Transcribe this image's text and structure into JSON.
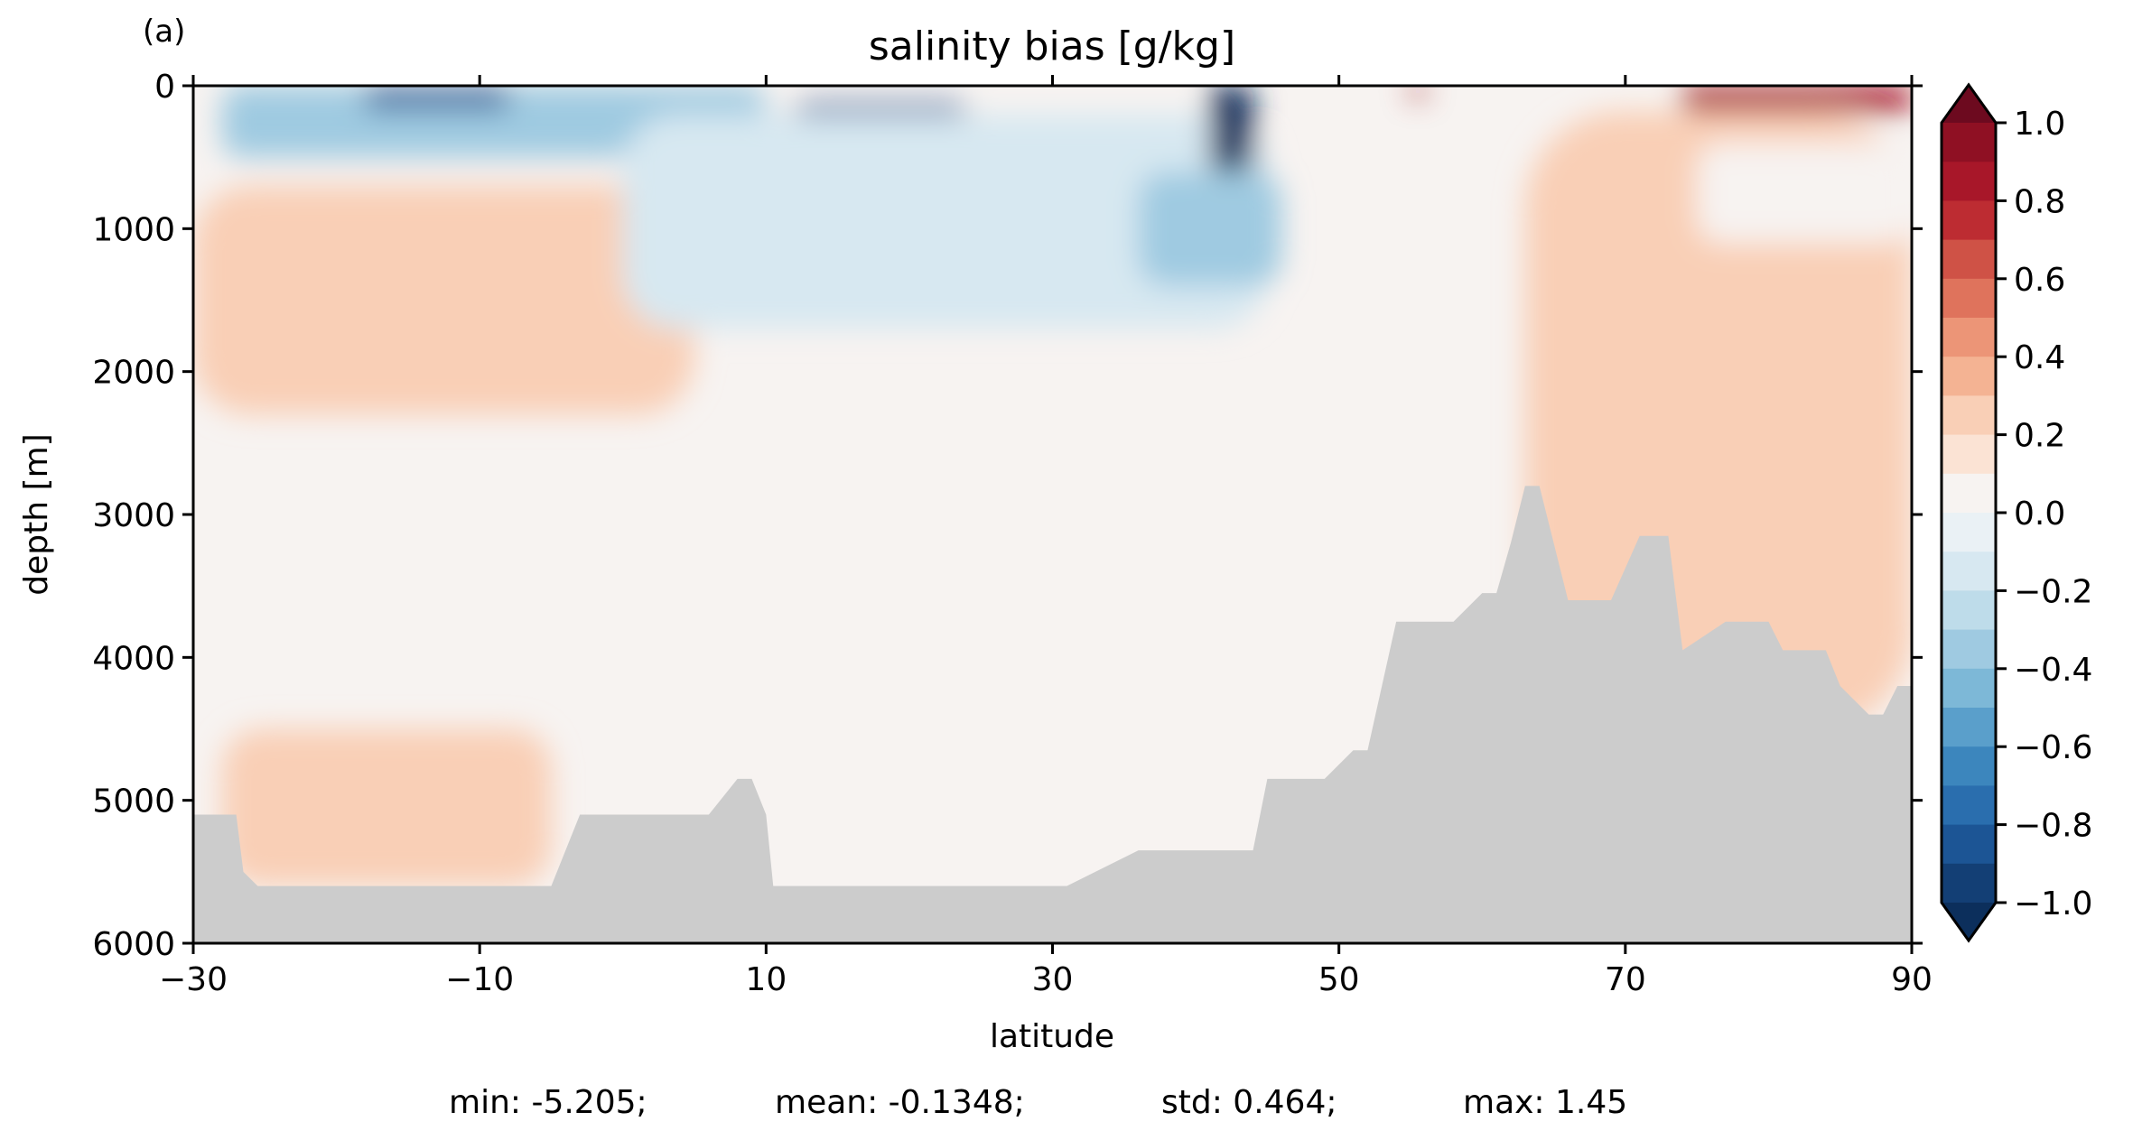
{
  "chart_data": {
    "type": "heatmap",
    "panel_label": "(a)",
    "title": "salinity bias [g/kg]",
    "xlabel": "latitude",
    "ylabel": "depth [m]",
    "xlim": [
      -30,
      90
    ],
    "ylim": [
      6000,
      0
    ],
    "x_ticks": [
      -30,
      -10,
      10,
      30,
      50,
      70,
      90
    ],
    "x_tick_labels": [
      "−30",
      "−10",
      "10",
      "30",
      "50",
      "70",
      "90"
    ],
    "y_ticks": [
      0,
      1000,
      2000,
      3000,
      4000,
      5000,
      6000
    ],
    "y_tick_labels": [
      "0",
      "1000",
      "2000",
      "3000",
      "4000",
      "5000",
      "6000"
    ],
    "colorbar": {
      "range": [
        -1.0,
        1.0
      ],
      "extend": "both",
      "tick_values": [
        1.0,
        0.8,
        0.6,
        0.4,
        0.2,
        0.0,
        -0.2,
        -0.4,
        -0.6,
        -0.8,
        -1.0
      ],
      "tick_labels": [
        "1.0",
        "0.8",
        "0.6",
        "0.4",
        "0.2",
        "0.0",
        "−0.2",
        "−0.4",
        "−0.6",
        "−0.8",
        "−1.0"
      ],
      "levels_top_to_bottom": [
        "#8f1023",
        "#a81729",
        "#bd2c32",
        "#cf5246",
        "#df735c",
        "#ec9577",
        "#f4b393",
        "#f9cfb6",
        "#fbe3d4",
        "#f7f3f1",
        "#eaf1f5",
        "#d7e8f1",
        "#bedcea",
        "#9fcae1",
        "#7db8d7",
        "#5a9fcb",
        "#3c86bd",
        "#2a6eae",
        "#1c5595",
        "#133f75"
      ],
      "over_color": "#6d0a1f",
      "under_color": "#0c2f5c"
    },
    "field": {
      "background_value": 0.05,
      "features": [
        {
          "lat": [
            -30,
            5
          ],
          "depth": [
            700,
            2300
          ],
          "value": 0.25
        },
        {
          "lat": [
            -28,
            -5
          ],
          "depth": [
            4500,
            5600
          ],
          "value": 0.25
        },
        {
          "lat": [
            63,
            90
          ],
          "depth": [
            180,
            4500
          ],
          "value": 0.25
        },
        {
          "lat": [
            75,
            90
          ],
          "depth": [
            400,
            1100
          ],
          "value": 0.05
        },
        {
          "lat": [
            -28,
            10
          ],
          "depth": [
            0,
            500
          ],
          "value": -0.4
        },
        {
          "lat": [
            -18,
            -8
          ],
          "depth": [
            20,
            160
          ],
          "value": -0.9
        },
        {
          "lat": [
            12,
            24
          ],
          "depth": [
            120,
            450
          ],
          "value": -0.8
        },
        {
          "lat": [
            0,
            45
          ],
          "depth": [
            200,
            1700
          ],
          "value": -0.2
        },
        {
          "lat": [
            36,
            46
          ],
          "depth": [
            600,
            1400
          ],
          "value": -0.35
        },
        {
          "lat": [
            41,
            44
          ],
          "depth": [
            0,
            600
          ],
          "value": -1.1
        },
        {
          "lat": [
            74,
            90
          ],
          "depth": [
            0,
            180
          ],
          "value": 0.85
        },
        {
          "lat": [
            55,
            56
          ],
          "depth": [
            0,
            80
          ],
          "value": 0.9
        }
      ]
    },
    "bathymetry": {
      "fill_color": "#cccccc",
      "lat": [
        -30,
        -27,
        -26.5,
        -25.5,
        -25,
        -24,
        -23,
        -22,
        -21,
        -19,
        -18,
        -17,
        -5,
        -3,
        -2,
        3,
        4,
        5,
        6,
        8,
        9,
        10,
        10.5,
        16,
        16.5,
        30,
        31,
        36,
        44,
        45,
        47,
        48.5,
        49,
        51,
        52,
        53,
        54,
        58,
        60,
        61,
        62,
        63,
        64,
        65,
        66,
        69,
        71,
        73,
        74,
        77,
        80,
        81,
        84,
        85,
        87,
        88,
        89,
        90
      ],
      "depth": [
        5100,
        5100,
        5500,
        5600,
        5600,
        5600,
        5600,
        5600,
        5600,
        5600,
        5600,
        5600,
        5600,
        5100,
        5100,
        5100,
        5100,
        5100,
        5100,
        4850,
        4850,
        5100,
        5600,
        5600,
        5600,
        5600,
        5600,
        5350,
        5350,
        4850,
        4850,
        4850,
        4850,
        4650,
        4650,
        4200,
        3750,
        3750,
        3550,
        3550,
        3200,
        2800,
        2800,
        3200,
        3600,
        3600,
        3150,
        3150,
        3950,
        3750,
        3750,
        3950,
        3950,
        4200,
        4400,
        4400,
        4200,
        4200
      ]
    }
  },
  "stats": {
    "min": "min: -5.205;",
    "mean": "mean: -0.1348;",
    "std": "std: 0.464;",
    "max": "max: 1.45"
  }
}
